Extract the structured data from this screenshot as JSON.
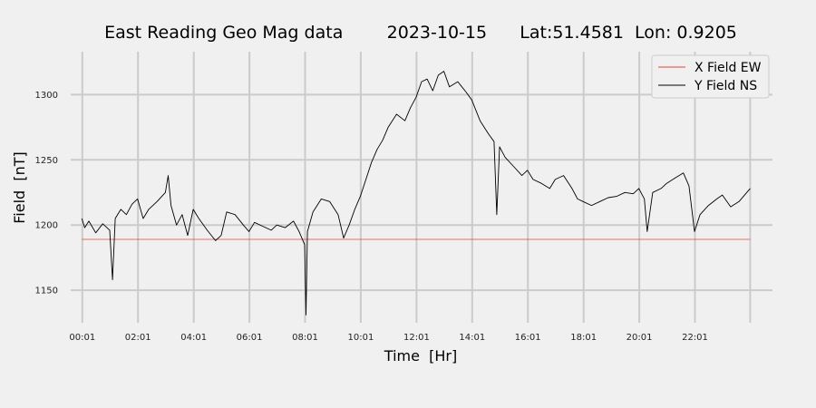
{
  "chart_data": {
    "type": "line",
    "title": "East Reading Geo Mag data        2023-10-15      Lat:51.4581  Lon: 0.9205",
    "xlabel": "Time  [Hr]",
    "ylabel": "Field  [nT]",
    "xlim": [
      -0.4,
      24.8
    ],
    "ylim": [
      1125,
      1333
    ],
    "x_ticks": [
      0.0167,
      2.0167,
      4.0167,
      6.0167,
      8.0167,
      10.0167,
      12.0167,
      14.0167,
      16.0167,
      18.0167,
      20.0167,
      22.0167,
      24.0
    ],
    "x_tick_labels": [
      "00:01",
      "02:01",
      "04:01",
      "06:01",
      "08:01",
      "10:01",
      "12:01",
      "14:01",
      "16:01",
      "18:01",
      "20:01",
      "22:01",
      ""
    ],
    "y_ticks": [
      1150,
      1200,
      1250,
      1300
    ],
    "y_tick_labels": [
      "1150",
      "1200",
      "1250",
      "1300"
    ],
    "grid": true,
    "legend_position": "top-right",
    "series": [
      {
        "name": "X Field EW",
        "color": "#e0443a",
        "x": [
          0.0,
          24.0
        ],
        "values": [
          1189,
          1189
        ]
      },
      {
        "name": "Y Field NS",
        "color": "#000000",
        "x": [
          0.0,
          0.1,
          0.25,
          0.5,
          0.75,
          1.0,
          1.1,
          1.2,
          1.4,
          1.6,
          1.8,
          2.0,
          2.2,
          2.4,
          2.7,
          3.0,
          3.1,
          3.2,
          3.4,
          3.6,
          3.8,
          4.0,
          4.2,
          4.5,
          4.8,
          5.0,
          5.2,
          5.5,
          5.8,
          6.0,
          6.2,
          6.5,
          6.8,
          7.0,
          7.3,
          7.6,
          7.8,
          8.0,
          8.05,
          8.1,
          8.3,
          8.6,
          8.9,
          9.2,
          9.4,
          9.6,
          9.8,
          10.0,
          10.2,
          10.4,
          10.6,
          10.8,
          11.0,
          11.3,
          11.6,
          11.8,
          12.0,
          12.2,
          12.4,
          12.6,
          12.8,
          13.0,
          13.2,
          13.5,
          13.8,
          14.0,
          14.3,
          14.6,
          14.8,
          14.9,
          15.0,
          15.2,
          15.5,
          15.8,
          16.0,
          16.2,
          16.5,
          16.8,
          17.0,
          17.3,
          17.6,
          17.8,
          18.0,
          18.3,
          18.6,
          18.9,
          19.2,
          19.5,
          19.8,
          20.0,
          20.2,
          20.3,
          20.5,
          20.8,
          21.0,
          21.3,
          21.6,
          21.8,
          22.0,
          22.2,
          22.5,
          22.8,
          23.0,
          23.3,
          23.6,
          24.0
        ],
        "values": [
          1205,
          1198,
          1203,
          1194,
          1201,
          1196,
          1158,
          1205,
          1212,
          1208,
          1216,
          1220,
          1205,
          1212,
          1218,
          1225,
          1238,
          1215,
          1200,
          1208,
          1192,
          1212,
          1205,
          1196,
          1188,
          1192,
          1210,
          1208,
          1200,
          1195,
          1202,
          1199,
          1196,
          1200,
          1198,
          1203,
          1195,
          1185,
          1131,
          1195,
          1210,
          1220,
          1218,
          1208,
          1190,
          1200,
          1212,
          1222,
          1235,
          1248,
          1258,
          1265,
          1275,
          1285,
          1280,
          1290,
          1298,
          1310,
          1312,
          1303,
          1315,
          1318,
          1306,
          1310,
          1302,
          1296,
          1280,
          1270,
          1264,
          1208,
          1260,
          1252,
          1245,
          1238,
          1242,
          1235,
          1232,
          1228,
          1235,
          1238,
          1228,
          1220,
          1218,
          1215,
          1218,
          1221,
          1222,
          1225,
          1224,
          1228,
          1220,
          1195,
          1225,
          1228,
          1232,
          1236,
          1240,
          1230,
          1195,
          1208,
          1215,
          1220,
          1223,
          1214,
          1218,
          1228
        ]
      }
    ]
  }
}
